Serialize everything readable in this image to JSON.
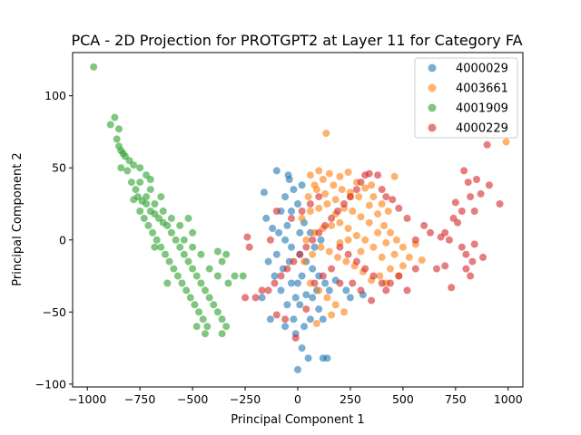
{
  "chart_data": {
    "type": "scatter",
    "title": "PCA - 2D Projection for PROTGPT2 at Layer 11 for Category FA",
    "xlabel": "Principal Component 1",
    "ylabel": "Principal Component 2",
    "xlim": [
      -1070,
      1070
    ],
    "ylim": [
      -102,
      130
    ],
    "xticks": [
      -1000,
      -750,
      -500,
      -250,
      0,
      250,
      500,
      750,
      1000
    ],
    "xtick_labels": [
      "−1000",
      "−750",
      "−500",
      "−250",
      "0",
      "250",
      "500",
      "750",
      "1000"
    ],
    "yticks": [
      -100,
      -50,
      0,
      50,
      100
    ],
    "ytick_labels": [
      "−100",
      "−50",
      "0",
      "50",
      "100"
    ],
    "grid": false,
    "legend_position": "top-right",
    "marker_alpha": 0.6,
    "series": [
      {
        "name": "4000029",
        "color": "#1f77b4",
        "points": [
          [
            -160,
            33
          ],
          [
            -100,
            48
          ],
          [
            -45,
            45
          ],
          [
            -40,
            42
          ],
          [
            -60,
            30
          ],
          [
            -20,
            35
          ],
          [
            20,
            38
          ],
          [
            -80,
            20
          ],
          [
            -150,
            15
          ],
          [
            -120,
            8
          ],
          [
            -90,
            5
          ],
          [
            -60,
            0
          ],
          [
            -30,
            -5
          ],
          [
            10,
            -10
          ],
          [
            40,
            -15
          ],
          [
            70,
            -20
          ],
          [
            100,
            -25
          ],
          [
            130,
            -30
          ],
          [
            -140,
            -15
          ],
          [
            -110,
            -25
          ],
          [
            -80,
            -35
          ],
          [
            -50,
            -45
          ],
          [
            -20,
            -55
          ],
          [
            10,
            -45
          ],
          [
            40,
            -38
          ],
          [
            70,
            -40
          ],
          [
            100,
            -48
          ],
          [
            120,
            -55
          ],
          [
            -130,
            -55
          ],
          [
            -60,
            -60
          ],
          [
            -10,
            -65
          ],
          [
            20,
            -75
          ],
          [
            50,
            -82
          ],
          [
            120,
            -82
          ],
          [
            140,
            -82
          ],
          [
            0,
            -90
          ],
          [
            -100,
            -10
          ],
          [
            -50,
            10
          ],
          [
            -30,
            20
          ],
          [
            0,
            25
          ],
          [
            30,
            12
          ],
          [
            60,
            5
          ],
          [
            80,
            -5
          ],
          [
            110,
            0
          ],
          [
            -170,
            -40
          ],
          [
            -30,
            -30
          ],
          [
            0,
            -30
          ],
          [
            20,
            -25
          ],
          [
            150,
            -35
          ],
          [
            60,
            -55
          ],
          [
            90,
            -35
          ],
          [
            -70,
            -20
          ],
          [
            180,
            -28
          ],
          [
            230,
            -35
          ],
          [
            250,
            -40
          ],
          [
            310,
            -38
          ],
          [
            -10,
            -40
          ],
          [
            30,
            -60
          ],
          [
            -40,
            -15
          ],
          [
            10,
            5
          ]
        ]
      },
      {
        "name": "4003661",
        "color": "#ff7f0e",
        "points": [
          [
            135,
            74
          ],
          [
            990,
            68
          ],
          [
            60,
            45
          ],
          [
            100,
            48
          ],
          [
            150,
            46
          ],
          [
            200,
            44
          ],
          [
            240,
            47
          ],
          [
            280,
            40
          ],
          [
            320,
            36
          ],
          [
            360,
            30
          ],
          [
            400,
            25
          ],
          [
            430,
            20
          ],
          [
            460,
            44
          ],
          [
            50,
            30
          ],
          [
            90,
            35
          ],
          [
            130,
            32
          ],
          [
            170,
            38
          ],
          [
            210,
            35
          ],
          [
            250,
            33
          ],
          [
            290,
            30
          ],
          [
            340,
            24
          ],
          [
            380,
            18
          ],
          [
            410,
            10
          ],
          [
            440,
            5
          ],
          [
            470,
            0
          ],
          [
            500,
            -5
          ],
          [
            530,
            -12
          ],
          [
            560,
            -3
          ],
          [
            590,
            -14
          ],
          [
            20,
            15
          ],
          [
            60,
            20
          ],
          [
            100,
            22
          ],
          [
            140,
            25
          ],
          [
            180,
            28
          ],
          [
            220,
            22
          ],
          [
            260,
            20
          ],
          [
            300,
            16
          ],
          [
            340,
            12
          ],
          [
            380,
            5
          ],
          [
            420,
            -2
          ],
          [
            460,
            -10
          ],
          [
            500,
            -18
          ],
          [
            40,
            0
          ],
          [
            80,
            5
          ],
          [
            120,
            8
          ],
          [
            160,
            10
          ],
          [
            200,
            12
          ],
          [
            240,
            8
          ],
          [
            280,
            3
          ],
          [
            320,
            0
          ],
          [
            360,
            -5
          ],
          [
            400,
            -12
          ],
          [
            440,
            -20
          ],
          [
            480,
            -25
          ],
          [
            30,
            -15
          ],
          [
            70,
            -10
          ],
          [
            110,
            -5
          ],
          [
            150,
            -8
          ],
          [
            190,
            -12
          ],
          [
            230,
            -15
          ],
          [
            270,
            -18
          ],
          [
            310,
            -22
          ],
          [
            350,
            -28
          ],
          [
            390,
            -25
          ],
          [
            60,
            -30
          ],
          [
            100,
            -35
          ],
          [
            140,
            -40
          ],
          [
            180,
            -45
          ],
          [
            220,
            -50
          ],
          [
            160,
            -52
          ],
          [
            90,
            -58
          ],
          [
            420,
            -30
          ],
          [
            300,
            -8
          ],
          [
            200,
            -2
          ],
          [
            250,
            30
          ],
          [
            350,
            38
          ],
          [
            120,
            42
          ],
          [
            80,
            38
          ],
          [
            180,
            18
          ],
          [
            240,
            0
          ]
        ]
      },
      {
        "name": "4001909",
        "color": "#2ca02c",
        "points": [
          [
            -970,
            120
          ],
          [
            -870,
            85
          ],
          [
            -850,
            77
          ],
          [
            -890,
            80
          ],
          [
            -860,
            70
          ],
          [
            -850,
            65
          ],
          [
            -840,
            62
          ],
          [
            -830,
            60
          ],
          [
            -820,
            58
          ],
          [
            -800,
            55
          ],
          [
            -780,
            52
          ],
          [
            -750,
            50
          ],
          [
            -720,
            45
          ],
          [
            -700,
            42
          ],
          [
            -840,
            50
          ],
          [
            -810,
            48
          ],
          [
            -790,
            40
          ],
          [
            -770,
            35
          ],
          [
            -760,
            30
          ],
          [
            -740,
            27
          ],
          [
            -720,
            25
          ],
          [
            -700,
            20
          ],
          [
            -680,
            18
          ],
          [
            -660,
            15
          ],
          [
            -640,
            12
          ],
          [
            -620,
            10
          ],
          [
            -600,
            5
          ],
          [
            -580,
            0
          ],
          [
            -560,
            -5
          ],
          [
            -540,
            -10
          ],
          [
            -520,
            -15
          ],
          [
            -500,
            -20
          ],
          [
            -480,
            -25
          ],
          [
            -460,
            -30
          ],
          [
            -440,
            -35
          ],
          [
            -420,
            -40
          ],
          [
            -400,
            -45
          ],
          [
            -380,
            -50
          ],
          [
            -360,
            -55
          ],
          [
            -340,
            -60
          ],
          [
            -780,
            28
          ],
          [
            -750,
            20
          ],
          [
            -730,
            15
          ],
          [
            -710,
            10
          ],
          [
            -690,
            5
          ],
          [
            -670,
            0
          ],
          [
            -650,
            -5
          ],
          [
            -630,
            -10
          ],
          [
            -610,
            -15
          ],
          [
            -590,
            -20
          ],
          [
            -570,
            -25
          ],
          [
            -550,
            -30
          ],
          [
            -530,
            -35
          ],
          [
            -510,
            -40
          ],
          [
            -490,
            -45
          ],
          [
            -470,
            -50
          ],
          [
            -450,
            -55
          ],
          [
            -430,
            -60
          ],
          [
            -360,
            -65
          ],
          [
            -720,
            30
          ],
          [
            -680,
            25
          ],
          [
            -640,
            20
          ],
          [
            -600,
            15
          ],
          [
            -560,
            10
          ],
          [
            -540,
            0
          ],
          [
            -500,
            5
          ],
          [
            -520,
            15
          ],
          [
            -460,
            -10
          ],
          [
            -420,
            -20
          ],
          [
            -380,
            -25
          ],
          [
            -360,
            -15
          ],
          [
            -330,
            -30
          ],
          [
            -300,
            -25
          ],
          [
            -260,
            -25
          ],
          [
            -380,
            -8
          ],
          [
            -340,
            -10
          ],
          [
            -480,
            -60
          ],
          [
            -440,
            -65
          ],
          [
            -500,
            -5
          ],
          [
            -620,
            -30
          ],
          [
            -650,
            30
          ],
          [
            -700,
            35
          ],
          [
            -750,
            40
          ],
          [
            -680,
            -5
          ]
        ]
      },
      {
        "name": "4000229",
        "color": "#d62728",
        "points": [
          [
            900,
            66
          ],
          [
            790,
            48
          ],
          [
            850,
            42
          ],
          [
            870,
            32
          ],
          [
            810,
            40
          ],
          [
            820,
            30
          ],
          [
            910,
            38
          ],
          [
            960,
            25
          ],
          [
            750,
            26
          ],
          [
            780,
            20
          ],
          [
            740,
            15
          ],
          [
            760,
            12
          ],
          [
            840,
            20
          ],
          [
            700,
            5
          ],
          [
            680,
            2
          ],
          [
            720,
            0
          ],
          [
            780,
            -5
          ],
          [
            800,
            -10
          ],
          [
            840,
            -3
          ],
          [
            830,
            -15
          ],
          [
            800,
            -20
          ],
          [
            820,
            -25
          ],
          [
            700,
            -18
          ],
          [
            660,
            -20
          ],
          [
            730,
            -33
          ],
          [
            880,
            -12
          ],
          [
            600,
            10
          ],
          [
            630,
            5
          ],
          [
            560,
            0
          ],
          [
            520,
            15
          ],
          [
            480,
            22
          ],
          [
            450,
            28
          ],
          [
            420,
            30
          ],
          [
            400,
            35
          ],
          [
            380,
            45
          ],
          [
            340,
            46
          ],
          [
            320,
            45
          ],
          [
            300,
            40
          ],
          [
            280,
            35
          ],
          [
            250,
            30
          ],
          [
            220,
            25
          ],
          [
            190,
            20
          ],
          [
            160,
            15
          ],
          [
            130,
            10
          ],
          [
            100,
            5
          ],
          [
            70,
            0
          ],
          [
            40,
            -5
          ],
          [
            10,
            -10
          ],
          [
            -20,
            -15
          ],
          [
            -50,
            -20
          ],
          [
            -80,
            -25
          ],
          [
            -110,
            -30
          ],
          [
            -140,
            -35
          ],
          [
            -170,
            -35
          ],
          [
            -200,
            -40
          ],
          [
            -240,
            2
          ],
          [
            -230,
            -5
          ],
          [
            -250,
            -40
          ],
          [
            200,
            -5
          ],
          [
            240,
            -10
          ],
          [
            280,
            -15
          ],
          [
            320,
            -20
          ],
          [
            360,
            -25
          ],
          [
            400,
            -30
          ],
          [
            440,
            -30
          ],
          [
            480,
            -25
          ],
          [
            520,
            -35
          ],
          [
            560,
            -20
          ],
          [
            -60,
            -55
          ],
          [
            -10,
            -68
          ],
          [
            -100,
            -52
          ],
          [
            40,
            -48
          ],
          [
            80,
            -30
          ],
          [
            120,
            -25
          ],
          [
            160,
            -20
          ],
          [
            200,
            -30
          ],
          [
            260,
            -30
          ],
          [
            300,
            -35
          ],
          [
            350,
            -42
          ],
          [
            420,
            -35
          ],
          [
            -30,
            15
          ],
          [
            20,
            20
          ],
          [
            60,
            25
          ],
          [
            100,
            30
          ],
          [
            -100,
            20
          ],
          [
            -130,
            0
          ]
        ]
      }
    ]
  }
}
